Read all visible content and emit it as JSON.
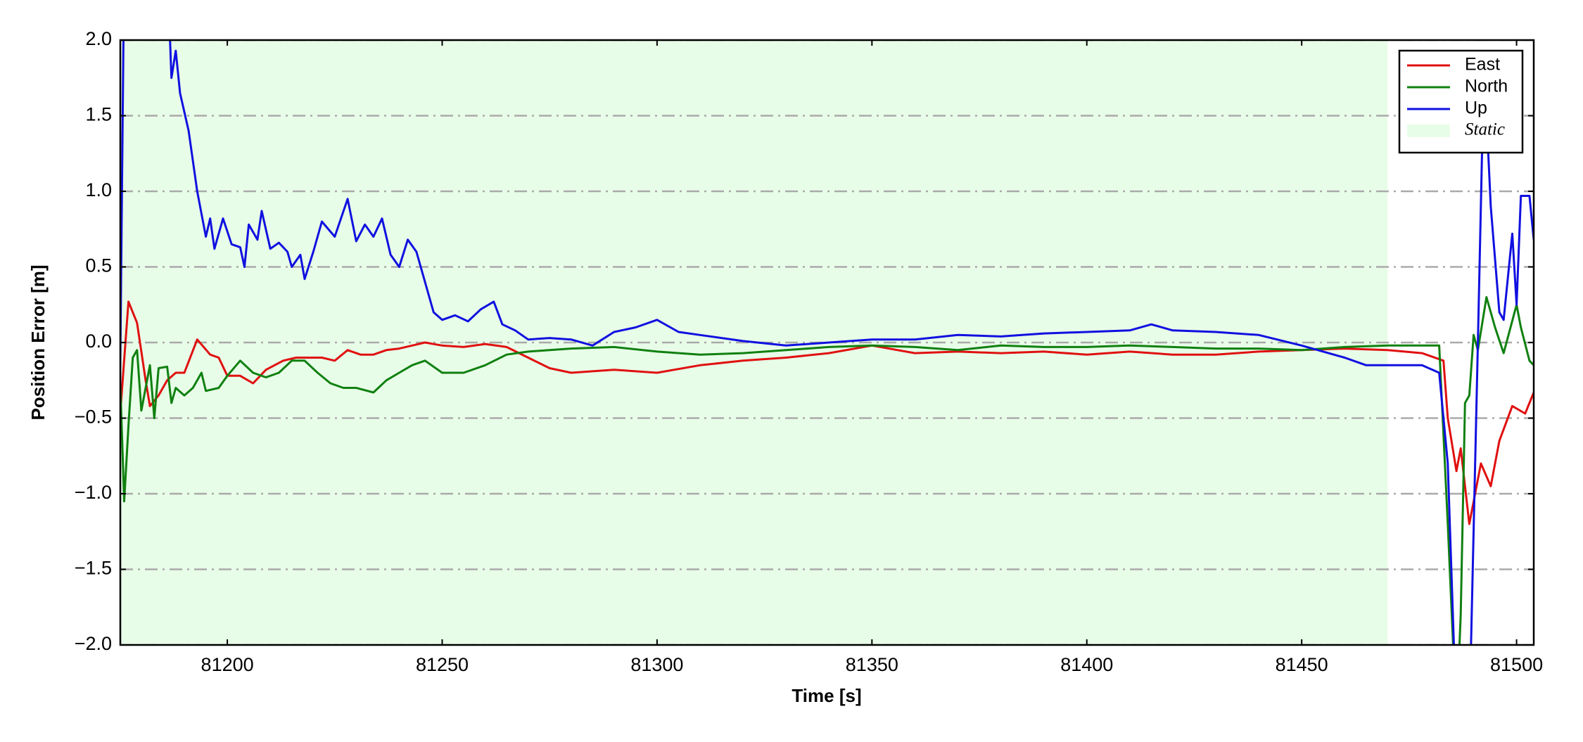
{
  "chart_data": {
    "type": "line",
    "xlabel": "Time [s]",
    "ylabel": "Position Error [m]",
    "xlim": [
      81175.1,
      81504
    ],
    "xticks": [
      81200,
      81250,
      81300,
      81350,
      81400,
      81450,
      81500
    ],
    "ylim": [
      -2,
      2
    ],
    "yticks": [
      {
        "value": -2,
        "label": "−2.0"
      },
      {
        "value": -1.5,
        "label": "−1.5"
      },
      {
        "value": -1,
        "label": "−1.0"
      },
      {
        "value": -0.5,
        "label": "−0.5"
      },
      {
        "value": 0,
        "label": "0.0"
      },
      {
        "value": 0.5,
        "label": "0.5"
      },
      {
        "value": 1,
        "label": "1.0"
      },
      {
        "value": 1.5,
        "label": "1.5"
      },
      {
        "value": 2,
        "label": "2.0"
      }
    ],
    "grid": true,
    "legend": "upper right",
    "static": {
      "label": "Static",
      "range": [
        81175.1,
        81470
      ],
      "color": "#e8fde8"
    },
    "series": [
      {
        "name": "East",
        "color": "#e01010",
        "x": [
          81175,
          81177,
          81179,
          81181,
          81182,
          81184,
          81186,
          81188,
          81190,
          81193,
          81196,
          81198,
          81200,
          81203,
          81206,
          81209,
          81213,
          81216,
          81219,
          81222,
          81225,
          81228,
          81231,
          81234,
          81237,
          81240,
          81243,
          81246,
          81250,
          81255,
          81260,
          81265,
          81270,
          81275,
          81280,
          81290,
          81300,
          81310,
          81320,
          81330,
          81340,
          81350,
          81360,
          81370,
          81380,
          81390,
          81400,
          81410,
          81420,
          81430,
          81440,
          81450,
          81460,
          81470,
          81478,
          81483,
          81484,
          81486,
          81487,
          81489,
          81491.7,
          81494,
          81496,
          81499,
          81502,
          81504
        ],
        "values": [
          -0.5,
          0.27,
          0.13,
          -0.25,
          -0.42,
          -0.35,
          -0.25,
          -0.2,
          -0.2,
          0.02,
          -0.08,
          -0.1,
          -0.22,
          -0.22,
          -0.27,
          -0.18,
          -0.12,
          -0.1,
          -0.1,
          -0.1,
          -0.12,
          -0.05,
          -0.08,
          -0.08,
          -0.05,
          -0.04,
          -0.02,
          0,
          -0.02,
          -0.03,
          -0.01,
          -0.03,
          -0.1,
          -0.17,
          -0.2,
          -0.18,
          -0.2,
          -0.15,
          -0.12,
          -0.1,
          -0.07,
          -0.02,
          -0.07,
          -0.06,
          -0.07,
          -0.06,
          -0.08,
          -0.06,
          -0.08,
          -0.08,
          -0.06,
          -0.05,
          -0.04,
          -0.05,
          -0.07,
          -0.12,
          -0.5,
          -0.85,
          -0.7,
          -1.2,
          -0.8,
          -0.95,
          -0.65,
          -0.42,
          -0.47,
          -0.33
        ]
      },
      {
        "name": "North",
        "color": "#108010",
        "x": [
          81175,
          81176,
          81177,
          81178,
          81179,
          81180,
          81182,
          81183,
          81184,
          81186,
          81187,
          81188,
          81190,
          81192,
          81194,
          81195,
          81198,
          81200,
          81203,
          81206,
          81209,
          81212,
          81215,
          81218,
          81221,
          81224,
          81227,
          81230,
          81234,
          81237,
          81240,
          81243,
          81246,
          81250,
          81255,
          81260,
          81265,
          81270,
          81275,
          81280,
          81290,
          81300,
          81310,
          81320,
          81330,
          81340,
          81350,
          81360,
          81370,
          81380,
          81390,
          81400,
          81410,
          81420,
          81430,
          81440,
          81450,
          81460,
          81470,
          81478,
          81482,
          81484,
          81486,
          81487,
          81488,
          81489,
          81490,
          81491,
          81493,
          81495,
          81497,
          81500,
          81501,
          81503,
          81504
        ],
        "values": [
          -0.2,
          -1.05,
          -0.55,
          -0.1,
          -0.05,
          -0.45,
          -0.15,
          -0.5,
          -0.17,
          -0.16,
          -0.4,
          -0.3,
          -0.35,
          -0.3,
          -0.2,
          -0.32,
          -0.3,
          -0.22,
          -0.12,
          -0.2,
          -0.23,
          -0.2,
          -0.12,
          -0.12,
          -0.2,
          -0.27,
          -0.3,
          -0.3,
          -0.33,
          -0.25,
          -0.2,
          -0.15,
          -0.12,
          -0.2,
          -0.2,
          -0.15,
          -0.08,
          -0.06,
          -0.05,
          -0.04,
          -0.03,
          -0.06,
          -0.08,
          -0.07,
          -0.05,
          -0.03,
          -0.02,
          -0.03,
          -0.05,
          -0.02,
          -0.03,
          -0.03,
          -0.02,
          -0.03,
          -0.04,
          -0.04,
          -0.05,
          -0.03,
          -0.02,
          -0.02,
          -0.02,
          -1.2,
          -2.5,
          -1.8,
          -0.4,
          -0.35,
          0.05,
          -0.05,
          0.3,
          0.1,
          -0.07,
          0.25,
          0.1,
          -0.12,
          -0.15
        ]
      },
      {
        "name": "Up",
        "color": "#1010e0",
        "x": [
          81175,
          81176,
          81186,
          81187,
          81188,
          81189,
          81191,
          81193,
          81195,
          81196,
          81197,
          81199,
          81201,
          81203,
          81204,
          81205,
          81207,
          81208,
          81210,
          81212,
          81214,
          81215,
          81217,
          81218,
          81220,
          81222,
          81225,
          81228,
          81230,
          81232,
          81234,
          81236,
          81238,
          81240,
          81242,
          81244,
          81246,
          81248,
          81250,
          81253,
          81256,
          81259,
          81262,
          81264,
          81267,
          81270,
          81275,
          81280,
          81285,
          81290,
          81295,
          81300,
          81305,
          81310,
          81320,
          81330,
          81340,
          81350,
          81360,
          81370,
          81380,
          81390,
          81400,
          81410,
          81415,
          81420,
          81430,
          81440,
          81450,
          81460,
          81465,
          81470,
          81478,
          81482,
          81484,
          81486,
          81489,
          81491,
          81492,
          81493,
          81494,
          81496,
          81497,
          81499,
          81500,
          81501,
          81503,
          81504
        ],
        "values": [
          -0.4,
          2.5,
          2.5,
          1.75,
          1.93,
          1.65,
          1.4,
          1.0,
          0.7,
          0.82,
          0.62,
          0.82,
          0.65,
          0.63,
          0.5,
          0.78,
          0.68,
          0.87,
          0.62,
          0.66,
          0.6,
          0.5,
          0.58,
          0.42,
          0.6,
          0.8,
          0.7,
          0.95,
          0.67,
          0.78,
          0.7,
          0.82,
          0.58,
          0.5,
          0.68,
          0.6,
          0.4,
          0.2,
          0.15,
          0.18,
          0.14,
          0.22,
          0.27,
          0.12,
          0.08,
          0.02,
          0.03,
          0.02,
          -0.02,
          0.07,
          0.1,
          0.15,
          0.07,
          0.05,
          0.01,
          -0.02,
          0,
          0.02,
          0.02,
          0.05,
          0.04,
          0.06,
          0.07,
          0.08,
          0.12,
          0.08,
          0.07,
          0.05,
          -0.02,
          -0.1,
          -0.15,
          -0.15,
          -0.15,
          -0.2,
          -0.8,
          -2.5,
          -2.5,
          0,
          1.3,
          1.5,
          0.9,
          0.2,
          0.15,
          0.72,
          0.25,
          0.97,
          0.97,
          0.68
        ]
      }
    ]
  }
}
